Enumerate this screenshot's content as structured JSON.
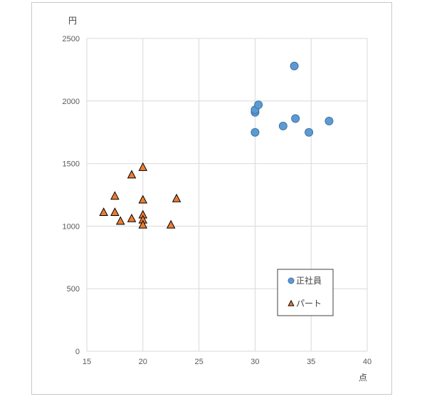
{
  "chart_data": {
    "type": "scatter",
    "xlabel": "点",
    "ylabel": "円",
    "xlim": [
      15,
      40
    ],
    "ylim": [
      0,
      2500
    ],
    "x_ticks": [
      "15",
      "20",
      "25",
      "30",
      "35",
      "40"
    ],
    "y_ticks": [
      "0",
      "500",
      "1000",
      "1500",
      "2000",
      "2500"
    ],
    "grid": true,
    "legend_position": "bottom-right",
    "series": [
      {
        "name": "正社員",
        "marker": "circle",
        "color": "#5b9bd5",
        "points": [
          {
            "x": 30.0,
            "y": 1750
          },
          {
            "x": 30.0,
            "y": 1910
          },
          {
            "x": 30.0,
            "y": 1930
          },
          {
            "x": 30.3,
            "y": 1970
          },
          {
            "x": 32.5,
            "y": 1800
          },
          {
            "x": 33.5,
            "y": 2280
          },
          {
            "x": 33.6,
            "y": 1860
          },
          {
            "x": 34.8,
            "y": 1750
          },
          {
            "x": 36.6,
            "y": 1840
          }
        ]
      },
      {
        "name": "パート",
        "marker": "triangle",
        "color": "#ed7d31",
        "points": [
          {
            "x": 16.5,
            "y": 1110
          },
          {
            "x": 17.5,
            "y": 1110
          },
          {
            "x": 17.5,
            "y": 1240
          },
          {
            "x": 18.0,
            "y": 1040
          },
          {
            "x": 19.0,
            "y": 1060
          },
          {
            "x": 19.0,
            "y": 1410
          },
          {
            "x": 20.0,
            "y": 1470
          },
          {
            "x": 20.0,
            "y": 1210
          },
          {
            "x": 20.0,
            "y": 1090
          },
          {
            "x": 20.0,
            "y": 1050
          },
          {
            "x": 20.0,
            "y": 1010
          },
          {
            "x": 22.5,
            "y": 1010
          },
          {
            "x": 23.0,
            "y": 1220
          }
        ]
      }
    ]
  }
}
